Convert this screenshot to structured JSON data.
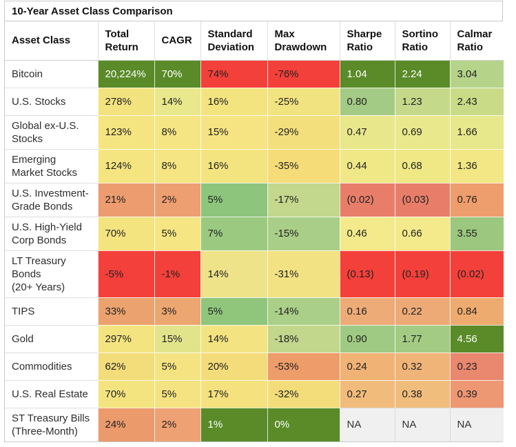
{
  "title": "10-Year Asset Class Comparison",
  "colors": {
    "strong_green": "#5a8b28",
    "strong_red": "#f4403a",
    "base_yellow": "#f5e581",
    "na_gray": "#f0f0f0",
    "border_gray": "#c9c9c9",
    "white_text": "#ffffff"
  },
  "table": {
    "header": {
      "labels": [
        "Asset Class",
        "Total\nReturn",
        "CAGR",
        "Standard\nDeviation",
        "Max\nDrawdown",
        "Sharpe\nRatio",
        "Sortino\nRatio",
        "Calmar\nRatio"
      ]
    },
    "rows": [
      {
        "label": "Bitcoin",
        "cells": [
          {
            "text": "20,224%",
            "bg": "#5a8b28",
            "fg": "#ffffff"
          },
          {
            "text": "70%",
            "bg": "#5a8b28",
            "fg": "#ffffff"
          },
          {
            "text": "74%",
            "bg": "#f4403a"
          },
          {
            "text": "-76%",
            "bg": "#f4403a"
          },
          {
            "text": "1.04",
            "bg": "#5a8b28",
            "fg": "#ffffff"
          },
          {
            "text": "2.24",
            "bg": "#5a8b28",
            "fg": "#ffffff"
          },
          {
            "text": "3.04",
            "bg": "#b5d48a"
          }
        ]
      },
      {
        "label": "U.S. Stocks",
        "cells": [
          {
            "text": "278%",
            "bg": "#f3e37f"
          },
          {
            "text": "14%",
            "bg": "#e9e88c"
          },
          {
            "text": "16%",
            "bg": "#f4e480"
          },
          {
            "text": "-25%",
            "bg": "#f2e381"
          },
          {
            "text": "0.80",
            "bg": "#a4cb85"
          },
          {
            "text": "1.23",
            "bg": "#c5d98a"
          },
          {
            "text": "2.43",
            "bg": "#cadb87"
          }
        ]
      },
      {
        "label": "Global ex-U.S.\nStocks",
        "cells": [
          {
            "text": "123%",
            "bg": "#f5e581"
          },
          {
            "text": "8%",
            "bg": "#f5e583"
          },
          {
            "text": "15%",
            "bg": "#f5e481"
          },
          {
            "text": "-29%",
            "bg": "#f3e07d"
          },
          {
            "text": "0.47",
            "bg": "#e9e78b"
          },
          {
            "text": "0.69",
            "bg": "#eae88c"
          },
          {
            "text": "1.66",
            "bg": "#e7e78b"
          }
        ]
      },
      {
        "label": "Emerging\nMarket Stocks",
        "cells": [
          {
            "text": "124%",
            "bg": "#f5e581"
          },
          {
            "text": "8%",
            "bg": "#f5e583"
          },
          {
            "text": "16%",
            "bg": "#f4e480"
          },
          {
            "text": "-35%",
            "bg": "#f5dc78"
          },
          {
            "text": "0.44",
            "bg": "#f0e886"
          },
          {
            "text": "0.68",
            "bg": "#efe885"
          },
          {
            "text": "1.36",
            "bg": "#f2e784"
          }
        ]
      },
      {
        "label": "U.S. Investment-\nGrade Bonds",
        "cells": [
          {
            "text": "21%",
            "bg": "#ec9c6e"
          },
          {
            "text": "2%",
            "bg": "#ee9f71"
          },
          {
            "text": "5%",
            "bg": "#8dc57d"
          },
          {
            "text": "-17%",
            "bg": "#c3d88c"
          },
          {
            "text": "(0.02)",
            "bg": "#e87e6a"
          },
          {
            "text": "(0.03)",
            "bg": "#e87e6a"
          },
          {
            "text": "0.76",
            "bg": "#ee9d6c"
          }
        ]
      },
      {
        "label": "U.S. High-Yield\nCorp Bonds",
        "cells": [
          {
            "text": "70%",
            "bg": "#f4e480"
          },
          {
            "text": "5%",
            "bg": "#f5e583"
          },
          {
            "text": "7%",
            "bg": "#9bc980"
          },
          {
            "text": "-15%",
            "bg": "#a9ce87"
          },
          {
            "text": "0.46",
            "bg": "#f4ea8b"
          },
          {
            "text": "0.66",
            "bg": "#f4ea8b"
          },
          {
            "text": "3.55",
            "bg": "#9cc77f"
          }
        ]
      },
      {
        "label": "LT Treasury\nBonds\n(20+ Years)",
        "cells": [
          {
            "text": "-5%",
            "bg": "#f4403a"
          },
          {
            "text": "-1%",
            "bg": "#f4403a"
          },
          {
            "text": "14%",
            "bg": "#efe38a"
          },
          {
            "text": "-31%",
            "bg": "#f2e284"
          },
          {
            "text": "(0.13)",
            "bg": "#f4403a"
          },
          {
            "text": "(0.19)",
            "bg": "#f4403a"
          },
          {
            "text": "(0.02)",
            "bg": "#f4403a"
          }
        ]
      },
      {
        "label": "TIPS",
        "cells": [
          {
            "text": "33%",
            "bg": "#eba26e"
          },
          {
            "text": "3%",
            "bg": "#eca670"
          },
          {
            "text": "5%",
            "bg": "#90c57c"
          },
          {
            "text": "-14%",
            "bg": "#a9cf88"
          },
          {
            "text": "0.16",
            "bg": "#edab77"
          },
          {
            "text": "0.22",
            "bg": "#edaa76"
          },
          {
            "text": "0.84",
            "bg": "#eeab6f"
          }
        ]
      },
      {
        "label": "Gold",
        "cells": [
          {
            "text": "297%",
            "bg": "#f4e480"
          },
          {
            "text": "15%",
            "bg": "#e2e48c"
          },
          {
            "text": "14%",
            "bg": "#f3e481"
          },
          {
            "text": "-18%",
            "bg": "#c2d78c"
          },
          {
            "text": "0.90",
            "bg": "#9fca83"
          },
          {
            "text": "1.77",
            "bg": "#a3cb84"
          },
          {
            "text": "4.56",
            "bg": "#5a8b28",
            "fg": "#ffffff"
          }
        ]
      },
      {
        "label": "Commodities",
        "cells": [
          {
            "text": "62%",
            "bg": "#f3dc7a"
          },
          {
            "text": "5%",
            "bg": "#f5e382"
          },
          {
            "text": "20%",
            "bg": "#f4dc7a"
          },
          {
            "text": "-53%",
            "bg": "#ee9d6a"
          },
          {
            "text": "0.24",
            "bg": "#f0b275"
          },
          {
            "text": "0.32",
            "bg": "#f0b478"
          },
          {
            "text": "0.23",
            "bg": "#e9876f"
          }
        ]
      },
      {
        "label": "U.S. Real Estate",
        "cells": [
          {
            "text": "70%",
            "bg": "#f4e480"
          },
          {
            "text": "5%",
            "bg": "#f5e382"
          },
          {
            "text": "17%",
            "bg": "#f5e17e"
          },
          {
            "text": "-32%",
            "bg": "#f3dd7b"
          },
          {
            "text": "0.27",
            "bg": "#f1bc7b"
          },
          {
            "text": "0.38",
            "bg": "#f1bd7d"
          },
          {
            "text": "0.39",
            "bg": "#ee9773"
          }
        ]
      },
      {
        "label": "ST Treasury Bills\n(Three-Month)",
        "cells": [
          {
            "text": "24%",
            "bg": "#eb9a6c"
          },
          {
            "text": "2%",
            "bg": "#eea274"
          },
          {
            "text": "1%",
            "bg": "#5a8b28",
            "fg": "#ffffff"
          },
          {
            "text": "0%",
            "bg": "#5a8b28",
            "fg": "#ffffff"
          },
          {
            "text": "NA",
            "bg": "#f0f0f0",
            "na": true
          },
          {
            "text": "NA",
            "bg": "#f0f0f0",
            "na": true
          },
          {
            "text": "NA",
            "bg": "#f0f0f0",
            "na": true
          }
        ]
      }
    ]
  },
  "chart_data": {
    "type": "table",
    "title": "10-Year Asset Class Comparison",
    "columns": [
      "Asset Class",
      "Total Return",
      "CAGR",
      "Standard Deviation",
      "Max Drawdown",
      "Sharpe Ratio",
      "Sortino Ratio",
      "Calmar Ratio"
    ],
    "rows": [
      [
        "Bitcoin",
        "20,224%",
        "70%",
        "74%",
        "-76%",
        "1.04",
        "2.24",
        "3.04"
      ],
      [
        "U.S. Stocks",
        "278%",
        "14%",
        "16%",
        "-25%",
        "0.80",
        "1.23",
        "2.43"
      ],
      [
        "Global ex-U.S. Stocks",
        "123%",
        "8%",
        "15%",
        "-29%",
        "0.47",
        "0.69",
        "1.66"
      ],
      [
        "Emerging Market Stocks",
        "124%",
        "8%",
        "16%",
        "-35%",
        "0.44",
        "0.68",
        "1.36"
      ],
      [
        "U.S. Investment-Grade Bonds",
        "21%",
        "2%",
        "5%",
        "-17%",
        "(0.02)",
        "(0.03)",
        "0.76"
      ],
      [
        "U.S. High-Yield Corp Bonds",
        "70%",
        "5%",
        "7%",
        "-15%",
        "0.46",
        "0.66",
        "3.55"
      ],
      [
        "LT Treasury Bonds (20+ Years)",
        "-5%",
        "-1%",
        "14%",
        "-31%",
        "(0.13)",
        "(0.19)",
        "(0.02)"
      ],
      [
        "TIPS",
        "33%",
        "3%",
        "5%",
        "-14%",
        "0.16",
        "0.22",
        "0.84"
      ],
      [
        "Gold",
        "297%",
        "15%",
        "14%",
        "-18%",
        "0.90",
        "1.77",
        "4.56"
      ],
      [
        "Commodities",
        "62%",
        "5%",
        "20%",
        "-53%",
        "0.24",
        "0.32",
        "0.23"
      ],
      [
        "U.S. Real Estate",
        "70%",
        "5%",
        "17%",
        "-32%",
        "0.27",
        "0.38",
        "0.39"
      ],
      [
        "ST Treasury Bills (Three-Month)",
        "24%",
        "2%",
        "1%",
        "0%",
        "NA",
        "NA",
        "NA"
      ]
    ],
    "layout_hints": {
      "cell_shading": "red-yellow-green heatmap, green = favorable, red = unfavorable, gray = NA",
      "grid": true,
      "legend": "none"
    }
  }
}
